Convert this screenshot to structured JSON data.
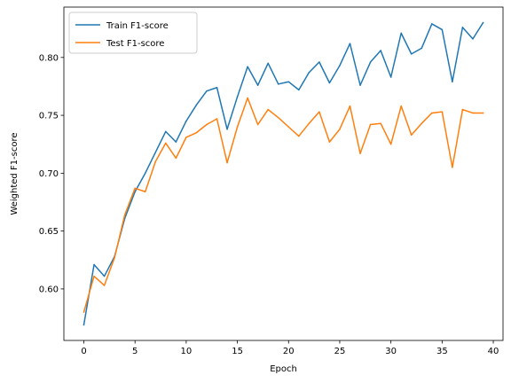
{
  "chart_data": {
    "type": "line",
    "title": "",
    "xlabel": "Epoch",
    "ylabel": "Weighted F1-score",
    "xlim": [
      -1.95,
      40.95
    ],
    "ylim": [
      0.5555,
      0.8435
    ],
    "xticks": [
      0,
      5,
      10,
      15,
      20,
      25,
      30,
      35,
      40
    ],
    "yticks": [
      0.6,
      0.65,
      0.7,
      0.75,
      0.8
    ],
    "ytick_labels": [
      "0.60",
      "0.65",
      "0.70",
      "0.75",
      "0.80"
    ],
    "grid": false,
    "legend": "upper left",
    "x": [
      0,
      1,
      2,
      3,
      4,
      5,
      6,
      7,
      8,
      9,
      10,
      11,
      12,
      13,
      14,
      15,
      16,
      17,
      18,
      19,
      20,
      21,
      22,
      23,
      24,
      25,
      26,
      27,
      28,
      29,
      30,
      31,
      32,
      33,
      34,
      35,
      36,
      37,
      38,
      39
    ],
    "series": [
      {
        "name": "Train F1-score",
        "color": "#1f77b4",
        "values": [
          0.569,
          0.621,
          0.611,
          0.628,
          0.661,
          0.684,
          0.7,
          0.718,
          0.736,
          0.727,
          0.745,
          0.759,
          0.771,
          0.774,
          0.738,
          0.766,
          0.792,
          0.776,
          0.795,
          0.777,
          0.779,
          0.772,
          0.787,
          0.796,
          0.778,
          0.793,
          0.812,
          0.776,
          0.796,
          0.806,
          0.783,
          0.821,
          0.803,
          0.808,
          0.829,
          0.824,
          0.779,
          0.826,
          0.816,
          0.83
        ]
      },
      {
        "name": "Test F1-score",
        "color": "#ff7f0e",
        "values": [
          0.58,
          0.611,
          0.603,
          0.627,
          0.664,
          0.687,
          0.684,
          0.71,
          0.726,
          0.713,
          0.731,
          0.735,
          0.742,
          0.747,
          0.709,
          0.74,
          0.765,
          0.742,
          0.755,
          0.748,
          0.74,
          0.732,
          0.743,
          0.753,
          0.727,
          0.738,
          0.758,
          0.717,
          0.742,
          0.743,
          0.725,
          0.758,
          0.733,
          0.743,
          0.752,
          0.753,
          0.705,
          0.755,
          0.752,
          0.752
        ]
      }
    ]
  }
}
